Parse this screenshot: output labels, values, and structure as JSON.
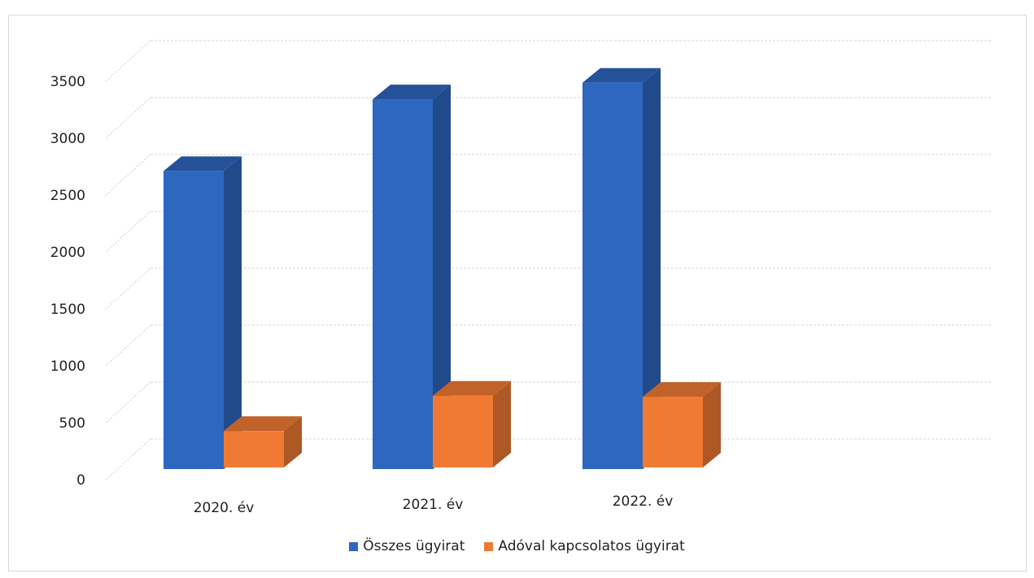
{
  "chart_data": {
    "type": "bar",
    "style": "3d-clustered-column",
    "categories": [
      "2020. év",
      "2021. év",
      "2022. év"
    ],
    "series": [
      {
        "name": "Összes ügyirat",
        "color": "#2e67bf",
        "values": [
          2700,
          3350,
          3500
        ]
      },
      {
        "name": "Adóval kapcsolatos ügyirat",
        "color": "#f07a33",
        "values": [
          330,
          650,
          640
        ]
      }
    ],
    "y_ticks": [
      "0",
      "500",
      "1000",
      "1500",
      "2000",
      "2500",
      "3000",
      "3500"
    ],
    "ylim": [
      0,
      3500
    ],
    "grid": true,
    "legend_position": "bottom"
  }
}
